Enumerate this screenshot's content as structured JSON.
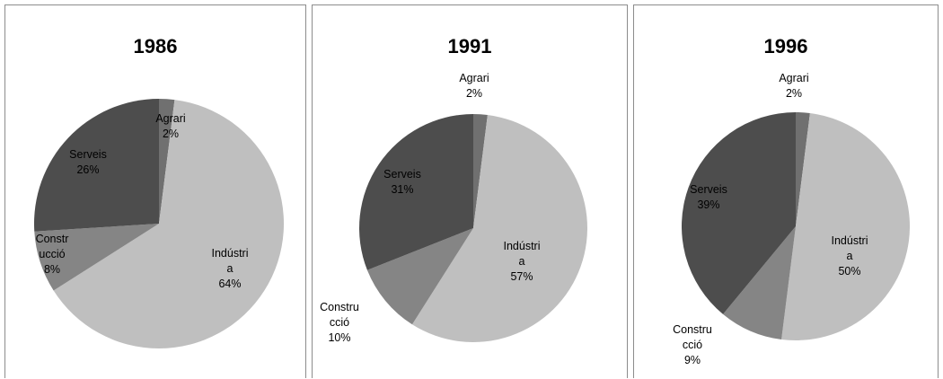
{
  "chart_data": [
    {
      "type": "pie",
      "title": "1986",
      "slices": [
        {
          "category": "Agrari",
          "value": 2,
          "label_lines": [
            "Agrari",
            "2%"
          ],
          "color": "#707070"
        },
        {
          "category": "Indústria",
          "value": 64,
          "label_lines": [
            "Indústri",
            "a",
            "64%"
          ],
          "color": "#bfbfbf"
        },
        {
          "category": "Construcció",
          "value": 8,
          "label_lines": [
            "Constr",
            "ucció",
            "8%"
          ],
          "color": "#858585"
        },
        {
          "category": "Serveis",
          "value": 26,
          "label_lines": [
            "Serveis",
            "26%"
          ],
          "color": "#4d4d4d"
        }
      ]
    },
    {
      "type": "pie",
      "title": "1991",
      "slices": [
        {
          "category": "Agrari",
          "value": 2,
          "label_lines": [
            "Agrari",
            "2%"
          ],
          "color": "#707070"
        },
        {
          "category": "Indústria",
          "value": 57,
          "label_lines": [
            "Indústri",
            "a",
            "57%"
          ],
          "color": "#bfbfbf"
        },
        {
          "category": "Construcció",
          "value": 10,
          "label_lines": [
            "Constru",
            "cció",
            "10%"
          ],
          "color": "#858585"
        },
        {
          "category": "Serveis",
          "value": 31,
          "label_lines": [
            "Serveis",
            "31%"
          ],
          "color": "#4d4d4d"
        }
      ]
    },
    {
      "type": "pie",
      "title": "1996",
      "slices": [
        {
          "category": "Agrari",
          "value": 2,
          "label_lines": [
            "Agrari",
            "2%"
          ],
          "color": "#707070"
        },
        {
          "category": "Indústria",
          "value": 50,
          "label_lines": [
            "Indústri",
            "a",
            "50%"
          ],
          "color": "#bfbfbf"
        },
        {
          "category": "Construcció",
          "value": 9,
          "label_lines": [
            "Constru",
            "cció",
            "9%"
          ],
          "color": "#858585"
        },
        {
          "category": "Serveis",
          "value": 39,
          "label_lines": [
            "Serveis",
            "39%"
          ],
          "color": "#4d4d4d"
        }
      ]
    }
  ]
}
